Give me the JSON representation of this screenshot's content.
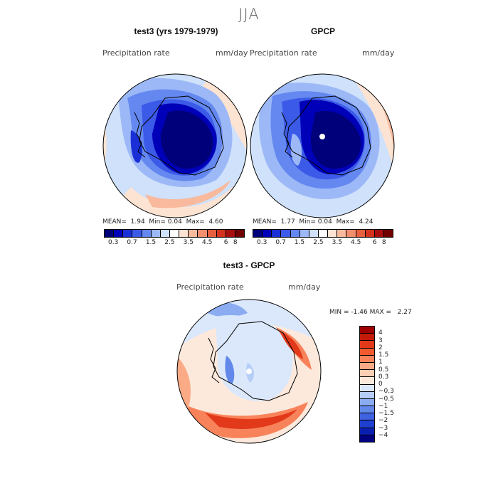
{
  "figure": {
    "title": "JJA"
  },
  "top_colorbar": {
    "colors": [
      "#00007a",
      "#0000b8",
      "#1a2fd6",
      "#3b5ae8",
      "#6488f0",
      "#9cb8f6",
      "#cfe1fb",
      "#ffffff",
      "#fde3d2",
      "#f8b99c",
      "#f18e6d",
      "#e65f3e",
      "#d3331c",
      "#a70f0e",
      "#700000"
    ],
    "tick_labels": [
      "0.3",
      "0.7",
      "1.5",
      "2.5",
      "3.5",
      "4.5",
      "6",
      "8"
    ]
  },
  "panels": {
    "model": {
      "title": "test3 (yrs 1979-1979)",
      "variable": "Precipitation rate",
      "units": "mm/day",
      "stats": {
        "mean_label": "MEAN=",
        "mean": "1.94",
        "min_label": "Min=",
        "min": "0.04",
        "max_label": "Max=",
        "max": "4.60"
      }
    },
    "obs": {
      "title": "GPCP",
      "variable": "Precipitation rate",
      "units": "mm/day",
      "stats": {
        "mean_label": "MEAN=",
        "mean": "1.77",
        "min_label": "Min=",
        "min": "0.04",
        "max_label": "Max=",
        "max": "4.24"
      }
    },
    "diff": {
      "title": "test3 - GPCP",
      "variable": "Precipitation rate",
      "units": "mm/day",
      "stats": {
        "min_label": "MIN =",
        "min": "-1.46",
        "max_label": "MAX =",
        "max": "2.27"
      }
    }
  },
  "diff_colorbar": {
    "colors": [
      "#9e0000",
      "#c41a0a",
      "#e2391a",
      "#f15a2e",
      "#f8835a",
      "#fbaa86",
      "#fdcfb4",
      "#fde9dc",
      "#dbe8fb",
      "#b6cdf7",
      "#8bacf1",
      "#6289ea",
      "#3e62e0",
      "#1f3fd0",
      "#0a1fb0",
      "#000080"
    ],
    "tick_labels": [
      "4",
      "3",
      "2",
      "1.5",
      "1",
      "0.5",
      "0.3",
      "0",
      "−0.3",
      "−0.5",
      "−1",
      "−1.5",
      "−2",
      "−3",
      "−4"
    ]
  }
}
